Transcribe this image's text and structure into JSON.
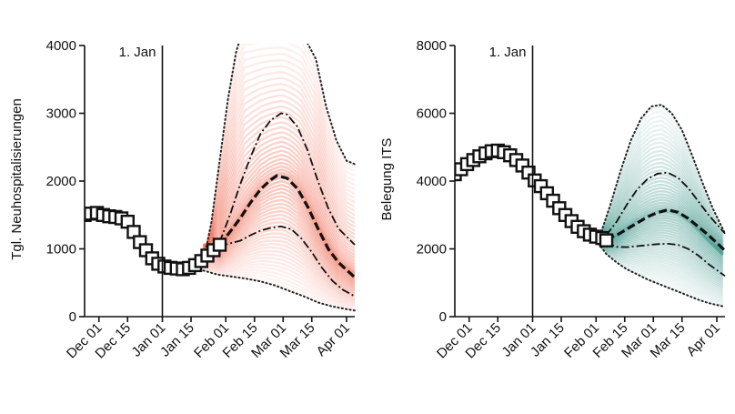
{
  "chart_data": [
    {
      "type": "line",
      "ylabel": "Tgl. Neuhospitalisierungen",
      "xlim": [
        "2020-11-24",
        "2021-04-05"
      ],
      "ylim": [
        0,
        4000
      ],
      "xticks": [
        "2020-12-01",
        "2020-12-15",
        "2021-01-01",
        "2021-01-15",
        "2021-02-01",
        "2021-02-15",
        "2021-03-01",
        "2021-03-15",
        "2021-04-01"
      ],
      "xtick_labels": [
        "Dec 01",
        "Dec 15",
        "Jan 01",
        "Jan 15",
        "Feb 01",
        "Feb 15",
        "Mar 01",
        "Mar 15",
        "Apr 01"
      ],
      "yticks": [
        0,
        1000,
        2000,
        3000,
        4000
      ],
      "ytick_labels": [
        "0",
        "1000",
        "2000",
        "3000",
        "4000"
      ],
      "vline": {
        "x": "2021-01-01",
        "label": "1. Jan"
      },
      "ensemble_color": "#f0705a",
      "observed": {
        "x": [
          "2020-11-24",
          "2020-11-27",
          "2020-11-30",
          "2020-12-03",
          "2020-12-06",
          "2020-12-09",
          "2020-12-12",
          "2020-12-15",
          "2020-12-18",
          "2020-12-21",
          "2020-12-24",
          "2020-12-27",
          "2020-12-30",
          "2021-01-02",
          "2021-01-05",
          "2021-01-08",
          "2021-01-11",
          "2021-01-14",
          "2021-01-17",
          "2021-01-20",
          "2021-01-23",
          "2021-01-26",
          "2021-01-29"
        ],
        "y": [
          1500,
          1520,
          1530,
          1500,
          1480,
          1470,
          1450,
          1400,
          1250,
          1100,
          980,
          860,
          780,
          740,
          720,
          710,
          700,
          720,
          760,
          820,
          900,
          980,
          1060
        ]
      },
      "median": {
        "x": [
          "2021-01-29",
          "2021-02-03",
          "2021-02-08",
          "2021-02-13",
          "2021-02-18",
          "2021-02-23",
          "2021-02-26",
          "2021-03-03",
          "2021-03-08",
          "2021-03-13",
          "2021-03-18",
          "2021-03-23",
          "2021-03-28",
          "2021-04-05"
        ],
        "y": [
          1060,
          1250,
          1450,
          1680,
          1880,
          2020,
          2080,
          2040,
          1890,
          1620,
          1300,
          1000,
          800,
          580
        ]
      },
      "inner_upper": {
        "x": [
          "2021-01-29",
          "2021-02-03",
          "2021-02-08",
          "2021-02-13",
          "2021-02-18",
          "2021-02-23",
          "2021-02-28",
          "2021-03-03",
          "2021-03-08",
          "2021-03-13",
          "2021-03-18",
          "2021-03-23",
          "2021-03-28",
          "2021-04-05"
        ],
        "y": [
          1100,
          1500,
          1950,
          2350,
          2700,
          2900,
          3000,
          2980,
          2800,
          2450,
          2000,
          1600,
          1300,
          1060
        ]
      },
      "inner_lower": {
        "x": [
          "2021-01-29",
          "2021-02-03",
          "2021-02-08",
          "2021-02-13",
          "2021-02-18",
          "2021-02-23",
          "2021-02-28",
          "2021-03-05",
          "2021-03-10",
          "2021-03-15",
          "2021-03-20",
          "2021-03-25",
          "2021-03-30",
          "2021-04-05"
        ],
        "y": [
          1040,
          1080,
          1120,
          1200,
          1270,
          1310,
          1330,
          1290,
          1150,
          950,
          720,
          530,
          400,
          300
        ]
      },
      "outer_upper": {
        "x": [
          "2021-01-21",
          "2021-01-25",
          "2021-01-29",
          "2021-02-02",
          "2021-02-06",
          "2021-02-10",
          "2021-03-01",
          "2021-03-10",
          "2021-03-17",
          "2021-03-22",
          "2021-03-27",
          "2021-04-01",
          "2021-04-05"
        ],
        "y": [
          800,
          1400,
          2300,
          3200,
          3900,
          4300,
          4300,
          4200,
          3800,
          3100,
          2600,
          2300,
          2250
        ]
      },
      "outer_lower": {
        "x": [
          "2021-01-21",
          "2021-01-28",
          "2021-02-04",
          "2021-02-11",
          "2021-02-18",
          "2021-02-25",
          "2021-03-04",
          "2021-03-11",
          "2021-03-18",
          "2021-03-25",
          "2021-04-01",
          "2021-04-05"
        ],
        "y": [
          680,
          620,
          590,
          560,
          520,
          460,
          380,
          300,
          210,
          150,
          110,
          90
        ]
      }
    },
    {
      "type": "line",
      "ylabel": "Belegung ITS",
      "xlim": [
        "2020-11-24",
        "2021-04-05"
      ],
      "ylim": [
        0,
        8000
      ],
      "xticks": [
        "2020-12-01",
        "2020-12-15",
        "2021-01-01",
        "2021-01-15",
        "2021-02-01",
        "2021-02-15",
        "2021-03-01",
        "2021-03-15",
        "2021-04-01"
      ],
      "xtick_labels": [
        "Dec 01",
        "Dec 15",
        "Jan 01",
        "Jan 15",
        "Feb 01",
        "Feb 15",
        "Mar 01",
        "Mar 15",
        "Apr 01"
      ],
      "yticks": [
        0,
        2000,
        4000,
        6000,
        8000
      ],
      "ytick_labels": [
        "0",
        "2000",
        "4000",
        "6000",
        "8000"
      ],
      "vline": {
        "x": "2021-01-01",
        "label": "1. Jan"
      },
      "ensemble_color": "#3c9488",
      "observed": {
        "x": [
          "2020-11-24",
          "2020-11-27",
          "2020-11-30",
          "2020-12-03",
          "2020-12-06",
          "2020-12-09",
          "2020-12-12",
          "2020-12-15",
          "2020-12-18",
          "2020-12-21",
          "2020-12-24",
          "2020-12-27",
          "2020-12-30",
          "2021-01-02",
          "2021-01-05",
          "2021-01-08",
          "2021-01-11",
          "2021-01-14",
          "2021-01-17",
          "2021-01-20",
          "2021-01-23",
          "2021-01-26",
          "2021-01-29",
          "2021-02-01",
          "2021-02-04",
          "2021-02-06"
        ],
        "y": [
          4200,
          4350,
          4500,
          4620,
          4730,
          4820,
          4880,
          4900,
          4850,
          4760,
          4620,
          4460,
          4250,
          4020,
          3850,
          3640,
          3420,
          3200,
          3000,
          2820,
          2650,
          2520,
          2420,
          2360,
          2320,
          2250
        ]
      },
      "median": {
        "x": [
          "2021-02-06",
          "2021-02-11",
          "2021-02-16",
          "2021-02-21",
          "2021-02-26",
          "2021-03-03",
          "2021-03-08",
          "2021-03-13",
          "2021-03-18",
          "2021-03-23",
          "2021-03-28",
          "2021-04-05"
        ],
        "y": [
          2300,
          2400,
          2580,
          2760,
          2940,
          3070,
          3150,
          3080,
          2900,
          2650,
          2400,
          1950
        ]
      },
      "inner_upper": {
        "x": [
          "2021-02-06",
          "2021-02-11",
          "2021-02-16",
          "2021-02-21",
          "2021-02-26",
          "2021-03-03",
          "2021-03-08",
          "2021-03-13",
          "2021-03-18",
          "2021-03-23",
          "2021-03-28",
          "2021-04-05"
        ],
        "y": [
          2400,
          2800,
          3300,
          3750,
          4050,
          4220,
          4250,
          4100,
          3800,
          3400,
          3000,
          2450
        ]
      },
      "inner_lower": {
        "x": [
          "2021-02-06",
          "2021-02-11",
          "2021-02-16",
          "2021-02-21",
          "2021-02-26",
          "2021-03-03",
          "2021-03-08",
          "2021-03-13",
          "2021-03-18",
          "2021-03-23",
          "2021-03-28",
          "2021-04-05"
        ],
        "y": [
          2180,
          2060,
          2050,
          2080,
          2110,
          2140,
          2150,
          2120,
          2000,
          1800,
          1550,
          1200
        ]
      },
      "outer_upper": {
        "x": [
          "2021-02-03",
          "2021-02-08",
          "2021-02-13",
          "2021-02-18",
          "2021-02-23",
          "2021-02-28",
          "2021-03-05",
          "2021-03-10",
          "2021-03-15",
          "2021-03-20",
          "2021-03-25",
          "2021-03-30",
          "2021-04-05"
        ],
        "y": [
          2400,
          3300,
          4300,
          5200,
          5850,
          6200,
          6250,
          6000,
          5500,
          4750,
          3950,
          3200,
          2450
        ]
      },
      "outer_lower": {
        "x": [
          "2021-02-01",
          "2021-02-06",
          "2021-02-11",
          "2021-02-16",
          "2021-02-21",
          "2021-02-26",
          "2021-03-03",
          "2021-03-08",
          "2021-03-13",
          "2021-03-18",
          "2021-03-23",
          "2021-03-28",
          "2021-04-05"
        ],
        "y": [
          2250,
          1850,
          1600,
          1400,
          1250,
          1100,
          980,
          860,
          740,
          620,
          500,
          400,
          290
        ]
      }
    }
  ]
}
